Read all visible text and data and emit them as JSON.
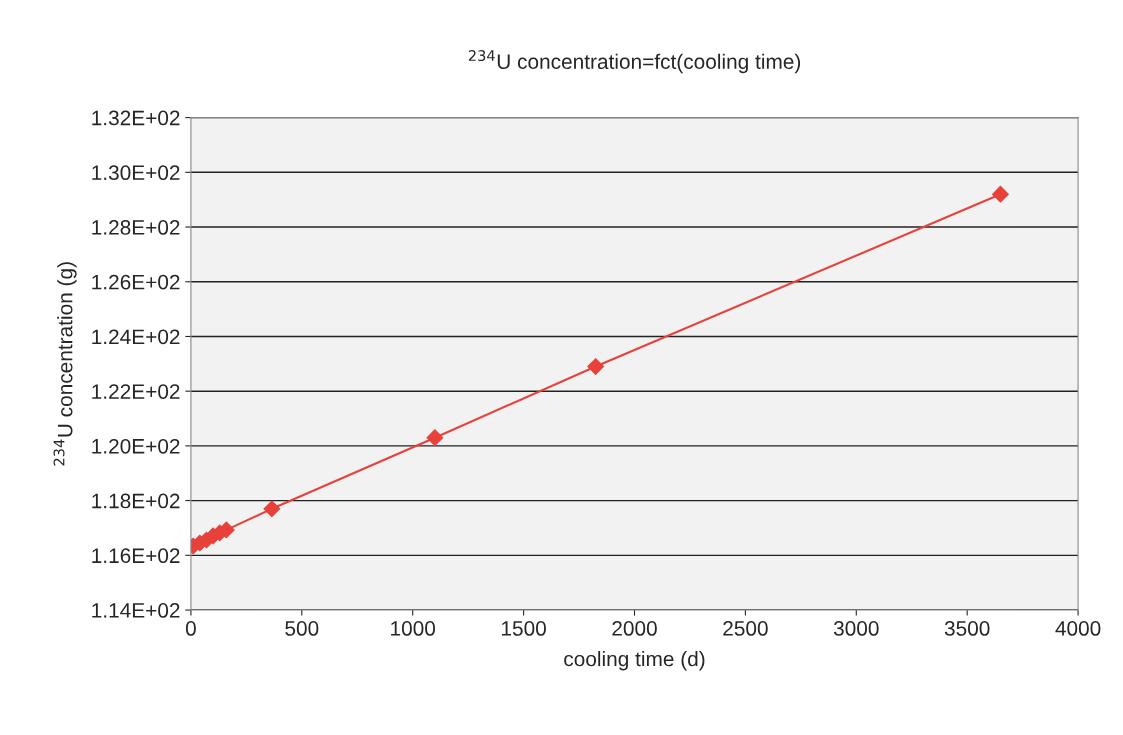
{
  "chart_data": {
    "type": "line",
    "title": "$^{234}$U concentration=fct(cooling time)",
    "xlabel": "cooling time (d)",
    "ylabel": "$^{234}$U concentration (g)",
    "x": [
      10,
      40,
      70,
      100,
      130,
      160,
      365,
      1100,
      1825,
      3650
    ],
    "series": [
      {
        "color": "#e8403a",
        "values": [
          116.34,
          116.45,
          116.56,
          116.71,
          116.82,
          116.93,
          117.7,
          120.3,
          122.9,
          129.2
        ]
      }
    ],
    "xlim": [
      0,
      4000
    ],
    "xticks": [
      0,
      500,
      1000,
      1500,
      2000,
      2500,
      3000,
      3500,
      4000
    ],
    "ylim": [
      114,
      132
    ],
    "yticks": [
      {
        "value": 114,
        "label": "1.14E+02"
      },
      {
        "value": 116,
        "label": "1.16E+02"
      },
      {
        "value": 118,
        "label": "1.18E+02"
      },
      {
        "value": 120,
        "label": "1.20E+02"
      },
      {
        "value": 122,
        "label": "1.22E+02"
      },
      {
        "value": 124,
        "label": "1.24E+02"
      },
      {
        "value": 126,
        "label": "1.26E+02"
      },
      {
        "value": 128,
        "label": "1.28E+02"
      },
      {
        "value": 130,
        "label": "1.30E+02"
      },
      {
        "value": 132,
        "label": "1.32E+02"
      }
    ],
    "grid": "y",
    "marker": "diamond",
    "line_style": "solid"
  }
}
